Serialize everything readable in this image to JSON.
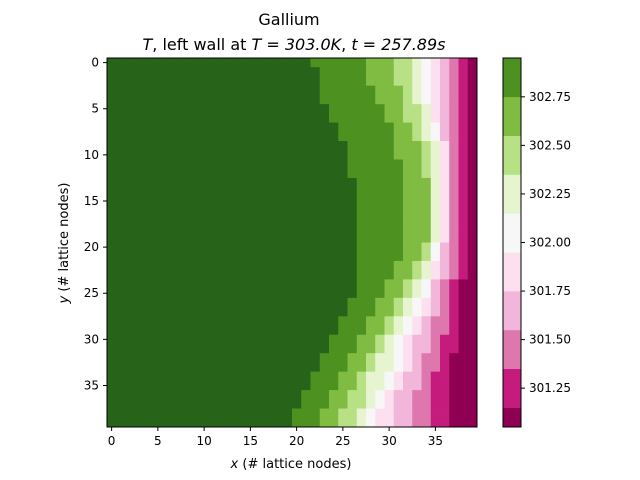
{
  "chart_data": {
    "type": "heatmap",
    "title": "Gallium",
    "subtitle_parts": {
      "var": "T",
      "mid": ", left wall at ",
      "eq1": "T = 303.0K",
      "sep": ", ",
      "eq2": "t = 257.89s"
    },
    "xlabel_var": "x",
    "xlabel": "(# lattice nodes)",
    "ylabel_var": "y",
    "ylabel": "(# lattice nodes)",
    "x_ticks": [
      "0",
      "5",
      "10",
      "15",
      "20",
      "25",
      "30",
      "35"
    ],
    "y_ticks": [
      "0",
      "5",
      "10",
      "15",
      "20",
      "25",
      "30",
      "35"
    ],
    "grid_size": {
      "nx": 40,
      "ny": 40
    },
    "colorbar": {
      "ticks": [
        "302.75",
        "302.50",
        "302.25",
        "302.00",
        "301.75",
        "301.50",
        "301.25"
      ],
      "tick_values": [
        302.75,
        302.5,
        302.25,
        302.0,
        301.75,
        301.5,
        301.25
      ],
      "levels": [
        301.05,
        301.15,
        301.35,
        301.55,
        301.75,
        301.95,
        302.15,
        302.35,
        302.55,
        302.75,
        302.95
      ],
      "colors": [
        "#8e0152",
        "#c51b7d",
        "#de77ae",
        "#f1b6da",
        "#fde0ef",
        "#f7f7f7",
        "#e6f5d0",
        "#b8e186",
        "#7fbc41",
        "#4d9221",
        "#276419"
      ]
    },
    "row_profile_comment_free": true,
    "band_starts": {
      "rows_y": [
        0,
        2,
        4,
        6,
        8,
        10,
        12,
        14,
        16,
        18,
        20,
        22,
        24,
        26,
        28,
        30,
        32,
        34,
        36,
        38,
        39
      ],
      "b10": [
        22,
        23,
        23,
        24,
        25,
        26,
        26,
        27,
        27,
        27,
        27,
        27,
        27,
        26,
        25,
        24,
        23,
        22,
        21,
        20,
        20
      ],
      "b9": [
        28,
        28,
        29,
        30,
        31,
        31,
        32,
        32,
        32,
        32,
        32,
        31,
        30,
        29,
        28,
        27,
        26,
        25,
        24,
        23,
        23
      ],
      "b8": [
        31,
        31,
        32,
        32,
        33,
        34,
        34,
        35,
        35,
        35,
        34,
        33,
        32,
        31,
        30,
        29,
        28,
        27,
        26,
        25,
        25
      ],
      "b7": [
        33,
        33,
        33,
        34,
        34,
        35,
        35,
        35,
        35,
        35,
        35,
        34,
        33,
        32,
        31,
        30,
        29,
        28,
        28,
        27,
        27
      ],
      "b6": [
        34,
        34,
        34,
        35,
        35,
        36,
        36,
        36,
        36,
        36,
        35,
        35,
        34,
        33,
        32,
        31,
        31,
        30,
        29,
        28,
        28
      ],
      "b5": [
        35,
        35,
        35,
        35,
        36,
        36,
        36,
        36,
        36,
        36,
        36,
        35,
        35,
        34,
        33,
        32,
        32,
        31,
        30,
        29,
        29
      ],
      "b4": [
        36,
        36,
        36,
        36,
        36,
        37,
        37,
        37,
        37,
        37,
        36,
        36,
        35,
        35,
        34,
        33,
        33,
        32,
        31,
        31,
        31
      ],
      "b3": [
        37,
        37,
        37,
        37,
        37,
        37,
        37,
        37,
        37,
        37,
        37,
        37,
        36,
        36,
        35,
        35,
        34,
        34,
        33,
        33,
        33
      ],
      "b2": [
        38,
        38,
        38,
        38,
        38,
        38,
        38,
        38,
        38,
        38,
        38,
        38,
        37,
        37,
        37,
        36,
        36,
        35,
        35,
        35,
        35
      ],
      "b1": [
        39,
        39,
        39,
        39,
        39,
        39,
        39,
        39,
        39,
        39,
        39,
        39,
        38,
        38,
        38,
        38,
        37,
        37,
        37,
        37,
        37
      ]
    }
  }
}
